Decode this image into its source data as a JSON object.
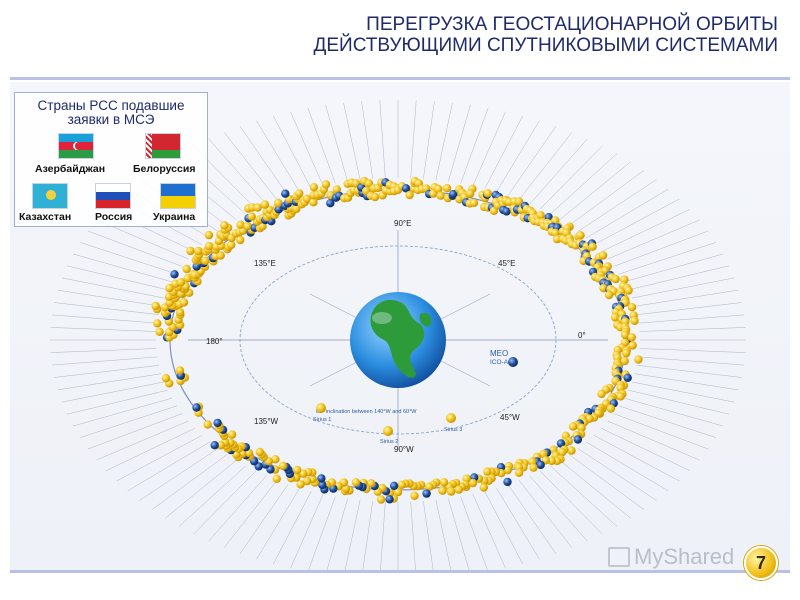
{
  "header": {
    "title_line1": "ПЕРЕГРУЗКА ГЕОСТАЦИОНАРНОЙ ОРБИТЫ",
    "title_line2": "ДЕЙСТВУЮЩИМИ СПУТНИКОВЫМИ СИСТЕМАМИ"
  },
  "countries_box": {
    "title_line1": "Страны РСС подавшие",
    "title_line2": "заявки в МСЭ",
    "countries": [
      {
        "name": "Азербайджан",
        "flag": "azerbaijan-flag"
      },
      {
        "name": "Белоруссия",
        "flag": "belarus-flag"
      },
      {
        "name": "Казахстан",
        "flag": "kazakhstan-flag"
      },
      {
        "name": "Россия",
        "flag": "russia-flag"
      },
      {
        "name": "Украина",
        "flag": "ukraine-flag"
      }
    ]
  },
  "orbit": {
    "longitude_labels": [
      "90°E",
      "45°E",
      "0°",
      "45°W",
      "90°W",
      "135°W",
      "180°",
      "135°E"
    ],
    "meo_label": "MEO",
    "meo_sub_label": "ICO-A1",
    "inclination_label": "63° inclination between 140°W and 60°W",
    "sirius_labels": [
      "Sirius 1",
      "Sirius 2",
      "Sirius 3"
    ]
  },
  "watermark": {
    "text": "MyShared"
  },
  "page_number": "7",
  "colors": {
    "title": "#1f2a6b",
    "satellite_yellow": "#f2c21b",
    "satellite_blue": "#1f4f9c",
    "orbit_line": "#7f8fb8",
    "panel_bg": "#eef1f7"
  }
}
